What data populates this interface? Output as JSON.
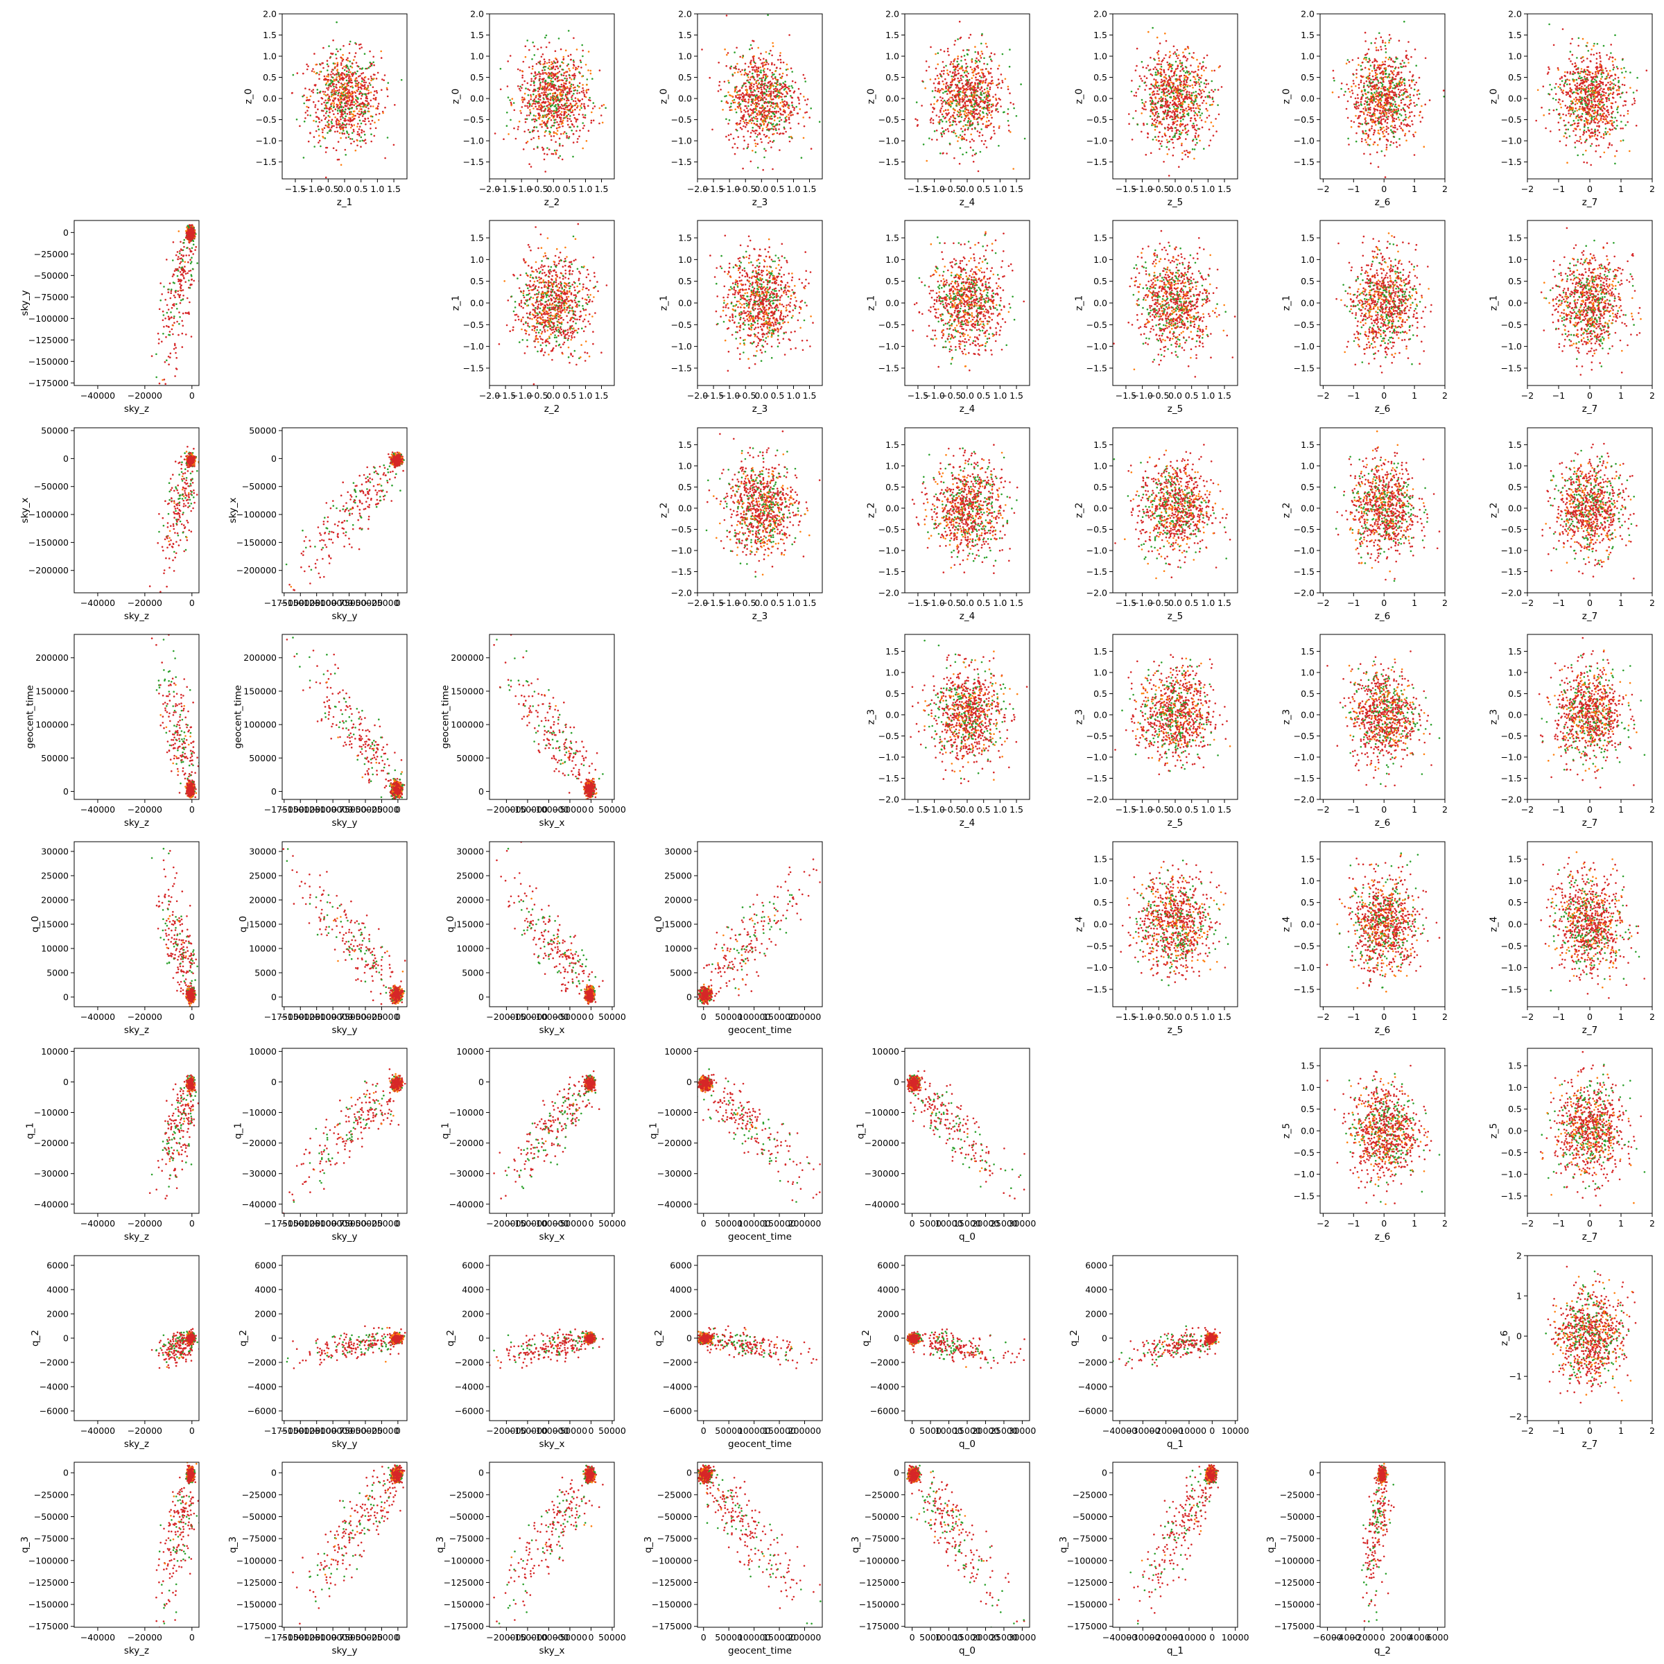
{
  "figure": {
    "plot_type": "pairwise scatter matrix (8x8 grid, 56 panels)",
    "background": "#ffffff",
    "colors": {
      "series_green": "#2ca02c",
      "series_orange": "#ff7f0e",
      "series_red": "#d62728"
    }
  },
  "chart_data": {
    "type": "scatter",
    "grid": false,
    "legend": "none",
    "point_count_approx": {
      "series_green": 400,
      "series_orange": 400,
      "series_red": 800
    },
    "variables": {
      "sky_z": {
        "label": "sky_z",
        "lim": [
          -50000,
          3000
        ],
        "ticks": [
          -40000,
          -20000,
          0
        ],
        "tick_labels": [
          "−40000",
          "−20000",
          "0"
        ],
        "center": -3000,
        "spread": 6000
      },
      "sky_y": {
        "label": "sky_y",
        "lim": [
          -178000,
          14000
        ],
        "ticks": [
          -175000,
          -150000,
          -125000,
          -100000,
          -75000,
          -50000,
          -25000,
          0
        ],
        "tick_labels": [
          "−175000",
          "−150000",
          "−125000",
          "−100000",
          "−75000",
          "−50000",
          "−25000",
          "0"
        ],
        "center": -10000,
        "spread": 30000
      },
      "sky_x": {
        "label": "sky_x",
        "lim": [
          -240000,
          55000
        ],
        "ticks": [
          -200000,
          -150000,
          -100000,
          -50000,
          0,
          50000
        ],
        "tick_labels": [
          "−200000",
          "−150000",
          "−100000",
          "−50000",
          "0",
          "50000"
        ],
        "center": -15000,
        "spread": 40000
      },
      "geocent_time": {
        "label": "geocent_time",
        "lim": [
          -12000,
          235000
        ],
        "ticks": [
          0,
          50000,
          100000,
          150000,
          200000
        ],
        "tick_labels": [
          "0",
          "50000",
          "100000",
          "150000",
          "200000"
        ],
        "center": 15000,
        "spread": 45000
      },
      "q_0": {
        "label": "q_0",
        "lim": [
          -2000,
          32000
        ],
        "ticks": [
          0,
          5000,
          10000,
          15000,
          20000,
          25000,
          30000
        ],
        "tick_labels": [
          "0",
          "5000",
          "10000",
          "15000",
          "20000",
          "25000",
          "30000"
        ],
        "center": 2000,
        "spread": 5500
      },
      "q_1": {
        "label": "q_1",
        "lim": [
          -43000,
          11000
        ],
        "ticks": [
          -40000,
          -30000,
          -20000,
          -10000,
          0,
          10000
        ],
        "tick_labels": [
          "−40000",
          "−30000",
          "−20000",
          "−10000",
          "0",
          "10000"
        ],
        "center": -3000,
        "spread": 8000
      },
      "q_2": {
        "label": "q_2",
        "lim": [
          -6800,
          6800
        ],
        "ticks": [
          -6000,
          -4000,
          -2000,
          0,
          2000,
          4000,
          6000
        ],
        "tick_labels": [
          "−6000",
          "−4000",
          "−2000",
          "0",
          "2000",
          "4000",
          "6000"
        ],
        "center": -200,
        "spread": 1500
      },
      "q_3": {
        "label": "q_3",
        "lim": [
          -176000,
          12000
        ],
        "ticks": [
          -175000,
          -150000,
          -125000,
          -100000,
          -75000,
          -50000,
          -25000,
          0
        ],
        "tick_labels": [
          "−175000",
          "−150000",
          "−125000",
          "−100000",
          "−75000",
          "−50000",
          "−25000",
          "0"
        ],
        "center": -12000,
        "spread": 32000
      },
      "z_0": {
        "label": "z_0",
        "lim": [
          -1.9,
          2.0
        ],
        "ticks": [
          -1.5,
          -1.0,
          -0.5,
          0.0,
          0.5,
          1.0,
          1.5,
          2.0
        ],
        "tick_labels": [
          "−1.5",
          "−1.0",
          "−0.5",
          "0.0",
          "0.5",
          "1.0",
          "1.5",
          "2.0"
        ],
        "center": 0,
        "spread": 0.55
      },
      "z_1": {
        "label": "z_1",
        "lim": [
          -1.9,
          1.9
        ],
        "ticks": [
          -1.5,
          -1.0,
          -0.5,
          0.0,
          0.5,
          1.0,
          1.5
        ],
        "tick_labels": [
          "−1.5",
          "−1.0",
          "−0.5",
          "0.0",
          "0.5",
          "1.0",
          "1.5"
        ],
        "center": 0,
        "spread": 0.55
      },
      "z_2": {
        "label": "z_2",
        "lim": [
          -2.0,
          1.9
        ],
        "ticks": [
          -2.0,
          -1.5,
          -1.0,
          -0.5,
          0.0,
          0.5,
          1.0,
          1.5
        ],
        "tick_labels": [
          "−2.0",
          "−1.5",
          "−1.0",
          "−0.5",
          "0.0",
          "0.5",
          "1.0",
          "1.5"
        ],
        "center": 0,
        "spread": 0.55
      },
      "z_3": {
        "label": "z_3",
        "lim": [
          -2.0,
          1.9
        ],
        "ticks": [
          -2.0,
          -1.5,
          -1.0,
          -0.5,
          0.0,
          0.5,
          1.0,
          1.5
        ],
        "tick_labels": [
          "−2.0",
          "−1.5",
          "−1.0",
          "−0.5",
          "0.0",
          "0.5",
          "1.0",
          "1.5"
        ],
        "center": 0,
        "spread": 0.55
      },
      "z_4": {
        "label": "z_4",
        "lim": [
          -1.9,
          1.9
        ],
        "ticks": [
          -1.5,
          -1.0,
          -0.5,
          0.0,
          0.5,
          1.0,
          1.5
        ],
        "tick_labels": [
          "−1.5",
          "−1.0",
          "−0.5",
          "0.0",
          "0.5",
          "1.0",
          "1.5"
        ],
        "center": 0,
        "spread": 0.55
      },
      "z_5": {
        "label": "z_5",
        "lim": [
          -1.9,
          1.9
        ],
        "ticks": [
          -1.5,
          -1.0,
          -0.5,
          0.0,
          0.5,
          1.0,
          1.5
        ],
        "tick_labels": [
          "−1.5",
          "−1.0",
          "−0.5",
          "0.0",
          "0.5",
          "1.0",
          "1.5"
        ],
        "center": 0,
        "spread": 0.55
      },
      "z_6": {
        "label": "z_6",
        "lim": [
          -2.1,
          2.0
        ],
        "ticks": [
          -2,
          -1,
          0,
          1,
          2
        ],
        "tick_labels": [
          "−2",
          "−1",
          "0",
          "1",
          "2"
        ],
        "center": 0,
        "spread": 0.55
      },
      "z_7": {
        "label": "z_7",
        "lim": [
          -2.0,
          2.0
        ],
        "ticks": [
          -2,
          -1,
          0,
          1,
          2
        ],
        "tick_labels": [
          "−2",
          "−1",
          "0",
          "1",
          "2"
        ],
        "center": 0,
        "spread": 0.55
      }
    },
    "panels": [
      {
        "row": 0,
        "col": 1,
        "x": "z_1",
        "y": "z_0"
      },
      {
        "row": 0,
        "col": 2,
        "x": "z_2",
        "y": "z_0"
      },
      {
        "row": 0,
        "col": 3,
        "x": "z_3",
        "y": "z_0"
      },
      {
        "row": 0,
        "col": 4,
        "x": "z_4",
        "y": "z_0"
      },
      {
        "row": 0,
        "col": 5,
        "x": "z_5",
        "y": "z_0"
      },
      {
        "row": 0,
        "col": 6,
        "x": "z_6",
        "y": "z_0"
      },
      {
        "row": 0,
        "col": 7,
        "x": "z_7",
        "y": "z_0"
      },
      {
        "row": 1,
        "col": 0,
        "x": "sky_z",
        "y": "sky_y"
      },
      {
        "row": 1,
        "col": 2,
        "x": "z_2",
        "y": "z_1"
      },
      {
        "row": 1,
        "col": 3,
        "x": "z_3",
        "y": "z_1"
      },
      {
        "row": 1,
        "col": 4,
        "x": "z_4",
        "y": "z_1"
      },
      {
        "row": 1,
        "col": 5,
        "x": "z_5",
        "y": "z_1"
      },
      {
        "row": 1,
        "col": 6,
        "x": "z_6",
        "y": "z_1"
      },
      {
        "row": 1,
        "col": 7,
        "x": "z_7",
        "y": "z_1"
      },
      {
        "row": 2,
        "col": 0,
        "x": "sky_z",
        "y": "sky_x"
      },
      {
        "row": 2,
        "col": 1,
        "x": "sky_y",
        "y": "sky_x"
      },
      {
        "row": 2,
        "col": 3,
        "x": "z_3",
        "y": "z_2"
      },
      {
        "row": 2,
        "col": 4,
        "x": "z_4",
        "y": "z_2"
      },
      {
        "row": 2,
        "col": 5,
        "x": "z_5",
        "y": "z_2"
      },
      {
        "row": 2,
        "col": 6,
        "x": "z_6",
        "y": "z_2"
      },
      {
        "row": 2,
        "col": 7,
        "x": "z_7",
        "y": "z_2"
      },
      {
        "row": 3,
        "col": 0,
        "x": "sky_z",
        "y": "geocent_time"
      },
      {
        "row": 3,
        "col": 1,
        "x": "sky_y",
        "y": "geocent_time"
      },
      {
        "row": 3,
        "col": 2,
        "x": "sky_x",
        "y": "geocent_time"
      },
      {
        "row": 3,
        "col": 4,
        "x": "z_4",
        "y": "z_3"
      },
      {
        "row": 3,
        "col": 5,
        "x": "z_5",
        "y": "z_3"
      },
      {
        "row": 3,
        "col": 6,
        "x": "z_6",
        "y": "z_3"
      },
      {
        "row": 3,
        "col": 7,
        "x": "z_7",
        "y": "z_3"
      },
      {
        "row": 4,
        "col": 0,
        "x": "sky_z",
        "y": "q_0"
      },
      {
        "row": 4,
        "col": 1,
        "x": "sky_y",
        "y": "q_0"
      },
      {
        "row": 4,
        "col": 2,
        "x": "sky_x",
        "y": "q_0"
      },
      {
        "row": 4,
        "col": 3,
        "x": "geocent_time",
        "y": "q_0"
      },
      {
        "row": 4,
        "col": 5,
        "x": "z_5",
        "y": "z_4"
      },
      {
        "row": 4,
        "col": 6,
        "x": "z_6",
        "y": "z_4"
      },
      {
        "row": 4,
        "col": 7,
        "x": "z_7",
        "y": "z_4"
      },
      {
        "row": 5,
        "col": 0,
        "x": "sky_z",
        "y": "q_1"
      },
      {
        "row": 5,
        "col": 1,
        "x": "sky_y",
        "y": "q_1"
      },
      {
        "row": 5,
        "col": 2,
        "x": "sky_x",
        "y": "q_1"
      },
      {
        "row": 5,
        "col": 3,
        "x": "geocent_time",
        "y": "q_1"
      },
      {
        "row": 5,
        "col": 4,
        "x": "q_0",
        "y": "q_1"
      },
      {
        "row": 5,
        "col": 6,
        "x": "z_6",
        "y": "z_5"
      },
      {
        "row": 5,
        "col": 7,
        "x": "z_7",
        "y": "z_5"
      },
      {
        "row": 6,
        "col": 0,
        "x": "sky_z",
        "y": "q_2"
      },
      {
        "row": 6,
        "col": 1,
        "x": "sky_y",
        "y": "q_2"
      },
      {
        "row": 6,
        "col": 2,
        "x": "sky_x",
        "y": "q_2"
      },
      {
        "row": 6,
        "col": 3,
        "x": "geocent_time",
        "y": "q_2"
      },
      {
        "row": 6,
        "col": 4,
        "x": "q_0",
        "y": "q_2"
      },
      {
        "row": 6,
        "col": 5,
        "x": "q_1",
        "y": "q_2"
      },
      {
        "row": 6,
        "col": 7,
        "x": "z_7",
        "y": "z_6"
      },
      {
        "row": 7,
        "col": 0,
        "x": "sky_z",
        "y": "q_3"
      },
      {
        "row": 7,
        "col": 1,
        "x": "sky_y",
        "y": "q_3"
      },
      {
        "row": 7,
        "col": 2,
        "x": "sky_x",
        "y": "q_3"
      },
      {
        "row": 7,
        "col": 3,
        "x": "geocent_time",
        "y": "q_3"
      },
      {
        "row": 7,
        "col": 4,
        "x": "q_0",
        "y": "q_3"
      },
      {
        "row": 7,
        "col": 5,
        "x": "q_1",
        "y": "q_3"
      },
      {
        "row": 7,
        "col": 6,
        "x": "q_2",
        "y": "q_3"
      }
    ]
  }
}
